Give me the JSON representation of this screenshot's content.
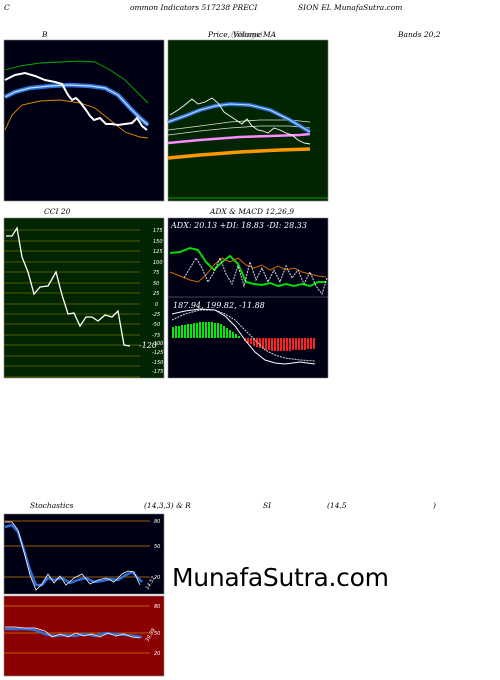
{
  "header": {
    "c": "C",
    "left": "ommon Indicators 517238 PRECI",
    "right": "SION EL MunafaSutra.com"
  },
  "panels": {
    "bands": {
      "left_label": "B",
      "right_label": "Bands 20,2"
    },
    "price": {
      "label1": "Price,",
      "label2": "Volume",
      "label3": "MA",
      "overlap": "(fillings)"
    },
    "cci": {
      "label": "CCI 20",
      "current_label": "-120"
    },
    "macd": {
      "title": "ADX & MACD 12,26,9",
      "adx_line": "ADX: 20.13 +DI: 18.83 -DI: 28.33",
      "macd_line": "187.94, 199.82, -11.88"
    },
    "stoch": {
      "label": "Stochastics",
      "params": "(14,3,3) & R",
      "si": "SI",
      "si_params": "(14,5",
      "close_paren": ")"
    }
  },
  "colors": {
    "dark_panel": "#000015",
    "price_panel": "#002500",
    "cci_panel": "#002500",
    "rsi_panel": "#8b0000",
    "accent_blue": "#3a8ef0",
    "orange": "#ffa500"
  },
  "cci_ticks": [
    "175",
    "150",
    "125",
    "100",
    "75",
    "50",
    "25",
    "0",
    "-25",
    "-50",
    "-75",
    "-100",
    "-125",
    "-150",
    "-175"
  ],
  "stoch_ticks": [
    "80",
    "50",
    "20"
  ],
  "rsi_ticks": [
    "80",
    "50",
    "20"
  ],
  "stoch_current": "14.57",
  "rsi_current": "39.89",
  "watermark": "MunafaSutra.com"
}
